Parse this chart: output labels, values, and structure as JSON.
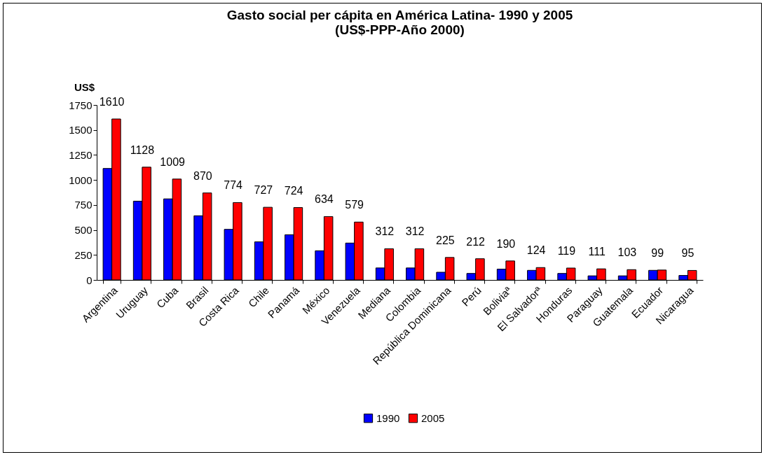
{
  "chart_data": {
    "type": "bar",
    "title": [
      "Gasto social per cápita en América Latina- 1990 y 2005",
      "(US$-PPP-Año 2000)"
    ],
    "ylabel": "US$",
    "categories": [
      "Argentina",
      "Uruguay",
      "Cuba",
      "Brasil",
      "Costa Rica",
      "Chile",
      "Panamá",
      "México",
      "Venezuela",
      "Mediana",
      "Colombia",
      "República Dominicana",
      "Perú",
      "Boliviaª",
      "El Salvadorª",
      "Honduras",
      "Paraguay",
      "Guatemala",
      "Ecuador",
      "Nicaragua"
    ],
    "series": [
      {
        "name": "1990",
        "color": "#0000ff",
        "values": [
          1115,
          788,
          811,
          642,
          506,
          381,
          452,
          292,
          369,
          120,
          120,
          77,
          65,
          108,
          96,
          65,
          41,
          41,
          96,
          45
        ]
      },
      {
        "name": "2005",
        "color": "#ff0000",
        "values": [
          1610,
          1128,
          1009,
          870,
          774,
          727,
          724,
          634,
          579,
          312,
          312,
          225,
          212,
          190,
          124,
          119,
          111,
          103,
          99,
          95
        ],
        "value_labels": [
          "1610",
          "1128",
          "1009",
          "870",
          "774",
          "727",
          "724",
          "634",
          "579",
          "312",
          "312",
          "225",
          "212",
          "190",
          "124",
          "119",
          "111",
          "103",
          "99",
          "95"
        ]
      }
    ],
    "ylim": [
      0,
      1750
    ],
    "yticks": [
      0,
      250,
      500,
      750,
      1000,
      1250,
      1500,
      1750
    ],
    "grid": false,
    "legend": "bottom"
  }
}
